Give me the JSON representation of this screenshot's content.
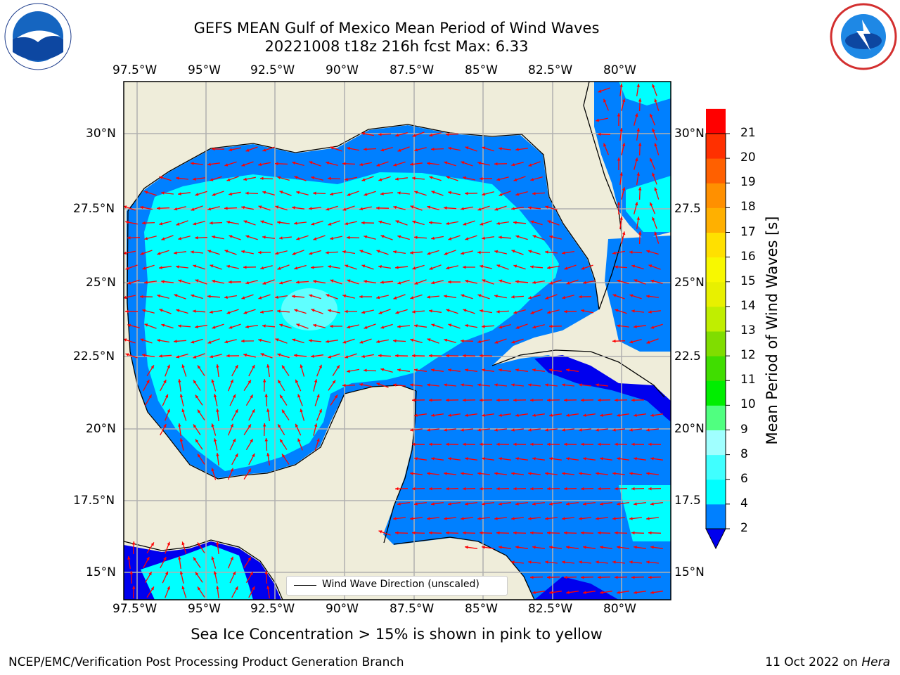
{
  "title": {
    "line1": "GEFS MEAN Gulf of Mexico Mean Period of Wind Waves",
    "line2": "20221008 t18z 216h fcst   Max: 6.33"
  },
  "logos": {
    "left": "noaa-logo",
    "right": "nws-logo"
  },
  "lon_labels": [
    "97.5°W",
    "95°W",
    "92.5°W",
    "90°W",
    "87.5°W",
    "85°W",
    "82.5°W",
    "80°W"
  ],
  "lat_labels_left": [
    "30°N",
    "27.5°N",
    "25°N",
    "22.5°N",
    "20°N",
    "17.5°N",
    "15°N"
  ],
  "lat_labels_right": [
    "30°N",
    "27.5",
    "25°N",
    "22.5",
    "20°N",
    "17.5",
    "15°N"
  ],
  "legend": {
    "label": "Wind Wave Direction (unscaled)"
  },
  "colorbar": {
    "title": "Mean Period of Wind Waves [s]",
    "ticks": [
      "21",
      "20",
      "19",
      "18",
      "17",
      "16",
      "15",
      "14",
      "13",
      "12",
      "11",
      "10",
      "9",
      "8",
      "6",
      "4",
      "2"
    ],
    "colors": [
      "#0000ee",
      "#0080ff",
      "#00ffff",
      "#40ffff",
      "#a0ffff",
      "#50ff80",
      "#00ee00",
      "#40dd00",
      "#80dd00",
      "#c0ee00",
      "#e8f000",
      "#f8f800",
      "#ffe000",
      "#ffb000",
      "#ff9000",
      "#ff6000",
      "#ff3000",
      "#ff0000"
    ]
  },
  "map_colors": {
    "land": "#efedda",
    "level_2_4": "#0080ff",
    "level_4_6": "#00ffff",
    "level_6_8": "#60ffff",
    "below_2": "#0000ee",
    "arrows": "#ff0000"
  },
  "bottom_note": "Sea Ice Concentration > 15% is shown in pink to yellow",
  "footer": {
    "left": "NCEP/EMC/Verification Post Processing Product Generation Branch",
    "right_prefix": "11 Oct 2022 on ",
    "right_host": "Hera"
  }
}
